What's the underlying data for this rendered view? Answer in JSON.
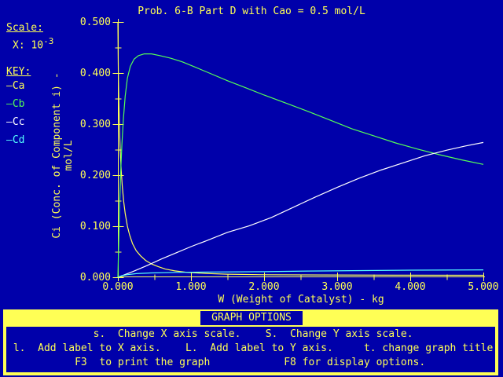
{
  "colors": {
    "background": "#0000AA",
    "foreground": "#FFFF55",
    "series_ca": "#FFFF55",
    "series_cb": "#55FF55",
    "series_cc": "#FFFFFF",
    "series_cd": "#55FFFF"
  },
  "title": "Prob. 6-B Part D with Cao = 0.5 mol/L",
  "scale": {
    "heading": "Scale:",
    "x_base": "X: 10",
    "x_exp": "-3"
  },
  "key": {
    "heading": "KEY:",
    "swatch": "—",
    "items": [
      {
        "label": "Ca",
        "color": "#FFFF55"
      },
      {
        "label": "Cb",
        "color": "#55FF55"
      },
      {
        "label": "Cc",
        "color": "#FFFFFF"
      },
      {
        "label": "Cd",
        "color": "#55FFFF"
      }
    ]
  },
  "chart_data": {
    "type": "line",
    "title": "Prob. 6-B Part D with Cao = 0.5 mol/L",
    "xlabel": "W (Weight of Catalyst) - kg",
    "ylabel": "Ci (Conc. of Component i) - mol/L",
    "x_scale_note": "X: 10^-3",
    "xlim": [
      0,
      5
    ],
    "ylim": [
      0,
      0.5
    ],
    "grid": false,
    "legend_position": "left",
    "axis_color": "#FFFF55",
    "x_ticks": [
      {
        "v": 0,
        "label": "0.000"
      },
      {
        "v": 1,
        "label": "1.000"
      },
      {
        "v": 2,
        "label": "2.000"
      },
      {
        "v": 3,
        "label": "3.000"
      },
      {
        "v": 4,
        "label": "4.000"
      },
      {
        "v": 5,
        "label": "5.000"
      }
    ],
    "y_ticks": [
      {
        "v": 0.0,
        "label": "0.000"
      },
      {
        "v": 0.1,
        "label": "0.100"
      },
      {
        "v": 0.2,
        "label": "0.200"
      },
      {
        "v": 0.3,
        "label": "0.300"
      },
      {
        "v": 0.4,
        "label": "0.400"
      },
      {
        "v": 0.5,
        "label": "0.500"
      }
    ],
    "x_minor_tick_step": 0.5,
    "y_minor_tick_step": 0.05,
    "series": [
      {
        "name": "Ca",
        "color": "#FFFF55",
        "points": [
          [
            0,
            0.5
          ],
          [
            0.004,
            0.43
          ],
          [
            0.008,
            0.385
          ],
          [
            0.013,
            0.345
          ],
          [
            0.02,
            0.3
          ],
          [
            0.03,
            0.255
          ],
          [
            0.045,
            0.21
          ],
          [
            0.06,
            0.178
          ],
          [
            0.08,
            0.148
          ],
          [
            0.1,
            0.125
          ],
          [
            0.13,
            0.1
          ],
          [
            0.16,
            0.083
          ],
          [
            0.2,
            0.066
          ],
          [
            0.25,
            0.052
          ],
          [
            0.31,
            0.042
          ],
          [
            0.38,
            0.033
          ],
          [
            0.46,
            0.026
          ],
          [
            0.55,
            0.021
          ],
          [
            0.65,
            0.016
          ],
          [
            0.78,
            0.0125
          ],
          [
            0.95,
            0.0095
          ],
          [
            1.2,
            0.0075
          ],
          [
            1.5,
            0.006
          ],
          [
            2.0,
            0.005
          ],
          [
            2.8,
            0.0045
          ],
          [
            3.8,
            0.004
          ],
          [
            5.0,
            0.0038
          ]
        ]
      },
      {
        "name": "Cb",
        "color": "#55FF55",
        "points": [
          [
            0,
            0
          ],
          [
            0.006,
            0.04
          ],
          [
            0.015,
            0.09
          ],
          [
            0.025,
            0.145
          ],
          [
            0.04,
            0.21
          ],
          [
            0.055,
            0.26
          ],
          [
            0.075,
            0.31
          ],
          [
            0.1,
            0.355
          ],
          [
            0.13,
            0.39
          ],
          [
            0.17,
            0.413
          ],
          [
            0.22,
            0.427
          ],
          [
            0.28,
            0.434
          ],
          [
            0.36,
            0.4375
          ],
          [
            0.46,
            0.4375
          ],
          [
            0.58,
            0.434
          ],
          [
            0.72,
            0.429
          ],
          [
            0.88,
            0.422
          ],
          [
            1.05,
            0.412
          ],
          [
            1.25,
            0.4
          ],
          [
            1.5,
            0.385
          ],
          [
            1.75,
            0.371
          ],
          [
            2.0,
            0.357
          ],
          [
            2.3,
            0.341
          ],
          [
            2.6,
            0.325
          ],
          [
            2.9,
            0.308
          ],
          [
            3.2,
            0.291
          ],
          [
            3.5,
            0.277
          ],
          [
            3.8,
            0.263
          ],
          [
            4.1,
            0.251
          ],
          [
            4.4,
            0.24
          ],
          [
            4.7,
            0.23
          ],
          [
            5.0,
            0.221
          ]
        ]
      },
      {
        "name": "Cc",
        "color": "#FFFFFF",
        "points": [
          [
            0,
            0
          ],
          [
            0.2,
            0.011
          ],
          [
            0.4,
            0.023
          ],
          [
            0.6,
            0.036
          ],
          [
            0.8,
            0.048
          ],
          [
            1.0,
            0.06
          ],
          [
            1.2,
            0.071
          ],
          [
            1.5,
            0.088
          ],
          [
            1.8,
            0.101
          ],
          [
            2.1,
            0.117
          ],
          [
            2.4,
            0.137
          ],
          [
            2.7,
            0.157
          ],
          [
            3.0,
            0.176
          ],
          [
            3.3,
            0.194
          ],
          [
            3.6,
            0.21
          ],
          [
            3.9,
            0.224
          ],
          [
            4.2,
            0.238
          ],
          [
            4.5,
            0.249
          ],
          [
            4.75,
            0.257
          ],
          [
            5.0,
            0.264
          ]
        ]
      },
      {
        "name": "Cd",
        "color": "#55FFFF",
        "points": [
          [
            0,
            0
          ],
          [
            0.05,
            0.003
          ],
          [
            0.12,
            0.005
          ],
          [
            0.25,
            0.007
          ],
          [
            0.45,
            0.0085
          ],
          [
            0.8,
            0.0095
          ],
          [
            1.3,
            0.0103
          ],
          [
            2.0,
            0.011
          ],
          [
            2.6,
            0.0122
          ],
          [
            3.2,
            0.013
          ],
          [
            4.0,
            0.0138
          ],
          [
            5.0,
            0.0145
          ]
        ]
      }
    ]
  },
  "menu": {
    "title": "GRAPH OPTIONS",
    "lines": [
      "              s.  Change X axis scale.    S.  Change Y axis scale.",
      " l.  Add label to X axis.    L.  Add label to Y axis.     t. change graph title.",
      "           F3  to print the graph            F8 for display options."
    ]
  }
}
